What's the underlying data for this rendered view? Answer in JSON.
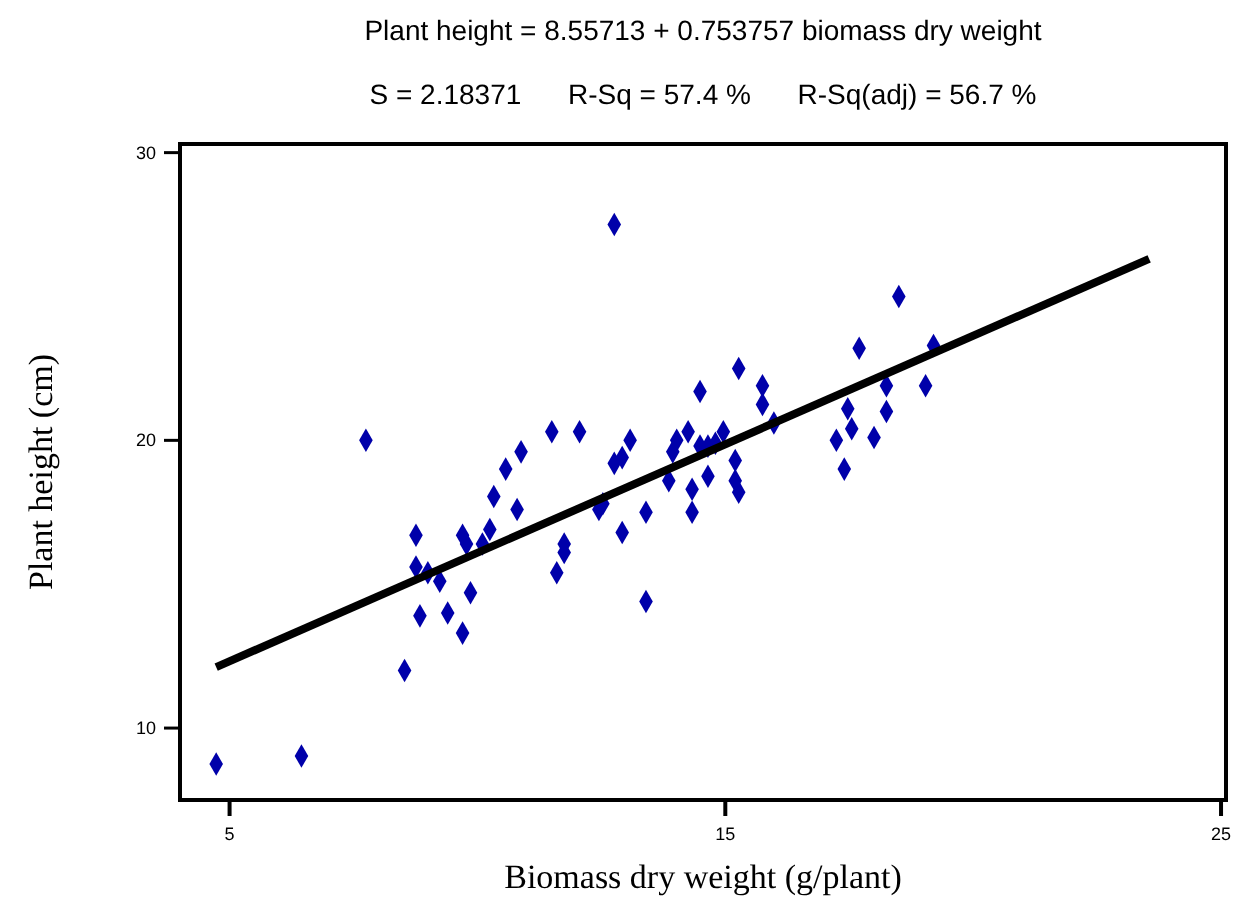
{
  "chart_data": {
    "type": "scatter",
    "title": "Plant height = 8.55713 + 0.753757 biomass dry weight",
    "subtitle": "S = 2.18371      R-Sq = 57.4 %      R-Sq(adj) = 56.7 %",
    "xlabel": "Biomass dry weight (g/plant)",
    "ylabel": "Plant height (cm)",
    "xlim": [
      4,
      25.1
    ],
    "ylim": [
      7.5,
      30.3
    ],
    "xticks": [
      5,
      15,
      25
    ],
    "yticks": [
      10,
      20,
      30
    ],
    "marker": "diamond",
    "series": [
      {
        "color": "#0000aa",
        "x": [
          4.73,
          6.45,
          7.75,
          8.53,
          8.76,
          8.76,
          8.84,
          9.0,
          9.24,
          9.4,
          9.7,
          9.7,
          9.78,
          9.86,
          10.1,
          10.25,
          10.33,
          10.57,
          10.8,
          10.88,
          11.5,
          11.6,
          11.75,
          11.75,
          12.06,
          12.45,
          12.53,
          12.76,
          12.76,
          12.92,
          12.92,
          13.08,
          13.4,
          13.4,
          13.86,
          13.94,
          14.02,
          14.25,
          14.33,
          14.33,
          14.49,
          14.49,
          14.65,
          14.65,
          14.8,
          14.96,
          15.2,
          15.2,
          15.27,
          15.27,
          15.75,
          15.75,
          15.98,
          17.24,
          17.4,
          17.47,
          17.55,
          17.7,
          18.0,
          18.25,
          18.25,
          18.5,
          19.04,
          19.2
        ],
        "values": [
          8.75,
          9.03,
          20.0,
          12.0,
          16.7,
          15.6,
          13.9,
          15.4,
          15.1,
          14.0,
          13.3,
          16.7,
          16.4,
          14.7,
          16.4,
          16.9,
          18.05,
          19.0,
          17.6,
          19.6,
          20.3,
          15.4,
          16.4,
          16.1,
          20.3,
          17.6,
          17.8,
          27.5,
          19.2,
          19.4,
          16.8,
          20.0,
          14.4,
          17.5,
          18.6,
          19.6,
          20.0,
          20.3,
          18.3,
          17.5,
          21.7,
          19.8,
          18.75,
          19.8,
          19.9,
          20.3,
          19.3,
          18.6,
          18.2,
          22.5,
          21.9,
          21.25,
          20.6,
          20.0,
          19.0,
          21.1,
          20.4,
          23.2,
          20.1,
          21.9,
          21.0,
          25.0,
          21.9,
          23.3
        ]
      },
      {
        "type": "line",
        "color": "#000000",
        "marker": "none",
        "x": [
          4.73,
          23.55
        ],
        "values": [
          12.12,
          26.31
        ]
      }
    ]
  }
}
